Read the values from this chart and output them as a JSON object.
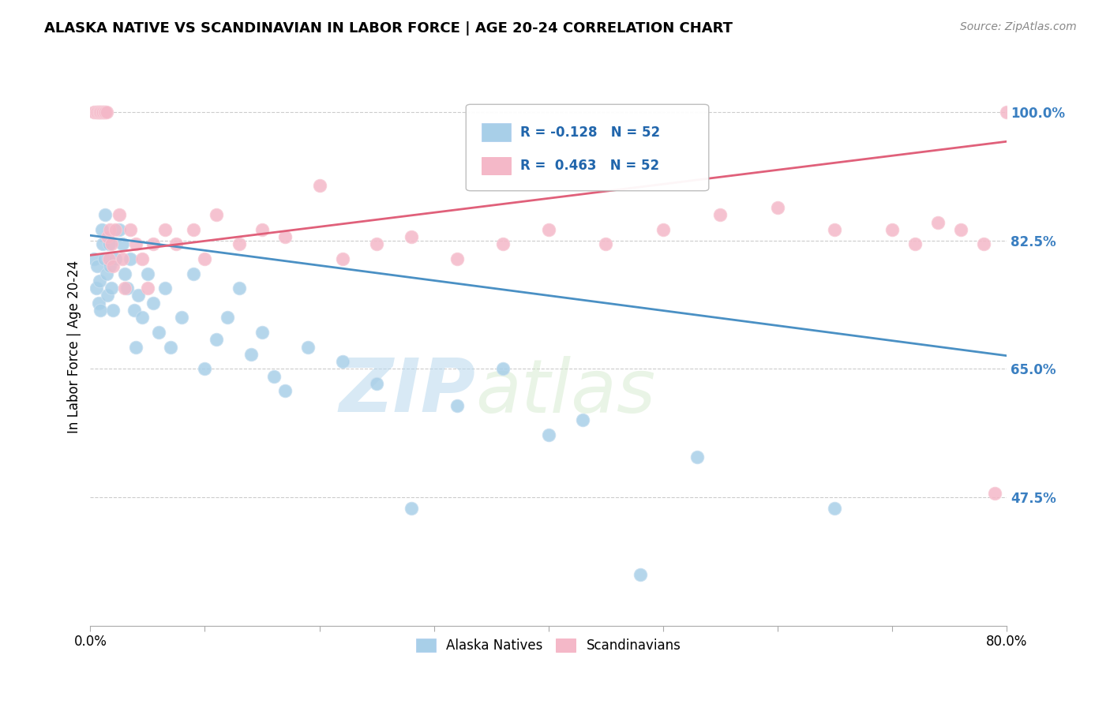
{
  "title": "ALASKA NATIVE VS SCANDINAVIAN IN LABOR FORCE | AGE 20-24 CORRELATION CHART",
  "source": "Source: ZipAtlas.com",
  "ylabel": "In Labor Force | Age 20-24",
  "xlim": [
    0.0,
    0.8
  ],
  "ylim": [
    0.3,
    1.06
  ],
  "yticks": [
    0.475,
    0.65,
    0.825,
    1.0
  ],
  "ytick_labels": [
    "47.5%",
    "65.0%",
    "82.5%",
    "100.0%"
  ],
  "xticks": [
    0.0,
    0.1,
    0.2,
    0.3,
    0.4,
    0.5,
    0.6,
    0.7,
    0.8
  ],
  "xtick_labels": [
    "0.0%",
    "",
    "",
    "",
    "",
    "",
    "",
    "",
    "80.0%"
  ],
  "watermark_zip": "ZIP",
  "watermark_atlas": "atlas",
  "alaska_R": -0.128,
  "alaska_N": 52,
  "scand_R": 0.463,
  "scand_N": 52,
  "alaska_color": "#a8cfe8",
  "scand_color": "#f4b8c8",
  "alaska_line_color": "#4a90c4",
  "scand_line_color": "#e0607a",
  "legend_alaska": "Alaska Natives",
  "legend_scand": "Scandinavians",
  "alaska_x": [
    0.003,
    0.005,
    0.006,
    0.007,
    0.008,
    0.009,
    0.01,
    0.011,
    0.012,
    0.013,
    0.014,
    0.015,
    0.016,
    0.017,
    0.018,
    0.02,
    0.022,
    0.025,
    0.028,
    0.03,
    0.032,
    0.035,
    0.038,
    0.04,
    0.042,
    0.045,
    0.05,
    0.055,
    0.06,
    0.065,
    0.07,
    0.08,
    0.09,
    0.1,
    0.11,
    0.12,
    0.13,
    0.14,
    0.15,
    0.16,
    0.17,
    0.19,
    0.22,
    0.25,
    0.28,
    0.32,
    0.36,
    0.4,
    0.43,
    0.48,
    0.53,
    0.65
  ],
  "alaska_y": [
    0.8,
    0.76,
    0.79,
    0.74,
    0.77,
    0.73,
    0.84,
    0.82,
    0.8,
    0.86,
    0.78,
    0.75,
    0.82,
    0.79,
    0.76,
    0.73,
    0.8,
    0.84,
    0.82,
    0.78,
    0.76,
    0.8,
    0.73,
    0.68,
    0.75,
    0.72,
    0.78,
    0.74,
    0.7,
    0.76,
    0.68,
    0.72,
    0.78,
    0.65,
    0.69,
    0.72,
    0.76,
    0.67,
    0.7,
    0.64,
    0.62,
    0.68,
    0.66,
    0.63,
    0.46,
    0.6,
    0.65,
    0.56,
    0.58,
    0.37,
    0.53,
    0.46
  ],
  "scand_x": [
    0.003,
    0.005,
    0.006,
    0.007,
    0.008,
    0.009,
    0.01,
    0.011,
    0.012,
    0.013,
    0.014,
    0.015,
    0.016,
    0.017,
    0.018,
    0.02,
    0.022,
    0.025,
    0.028,
    0.03,
    0.035,
    0.04,
    0.045,
    0.05,
    0.055,
    0.065,
    0.075,
    0.09,
    0.1,
    0.11,
    0.13,
    0.15,
    0.17,
    0.2,
    0.22,
    0.25,
    0.28,
    0.32,
    0.36,
    0.4,
    0.45,
    0.5,
    0.55,
    0.6,
    0.65,
    0.7,
    0.72,
    0.74,
    0.76,
    0.78,
    0.79,
    0.8
  ],
  "scand_y": [
    1.0,
    1.0,
    1.0,
    1.0,
    1.0,
    1.0,
    1.0,
    1.0,
    1.0,
    1.0,
    1.0,
    0.83,
    0.8,
    0.84,
    0.82,
    0.79,
    0.84,
    0.86,
    0.8,
    0.76,
    0.84,
    0.82,
    0.8,
    0.76,
    0.82,
    0.84,
    0.82,
    0.84,
    0.8,
    0.86,
    0.82,
    0.84,
    0.83,
    0.9,
    0.8,
    0.82,
    0.83,
    0.8,
    0.82,
    0.84,
    0.82,
    0.84,
    0.86,
    0.87,
    0.84,
    0.84,
    0.82,
    0.85,
    0.84,
    0.82,
    0.48,
    1.0
  ],
  "alaska_line_x": [
    0.0,
    0.8
  ],
  "alaska_line_y": [
    0.832,
    0.668
  ],
  "scand_line_x": [
    0.0,
    0.8
  ],
  "scand_line_y": [
    0.805,
    0.96
  ]
}
